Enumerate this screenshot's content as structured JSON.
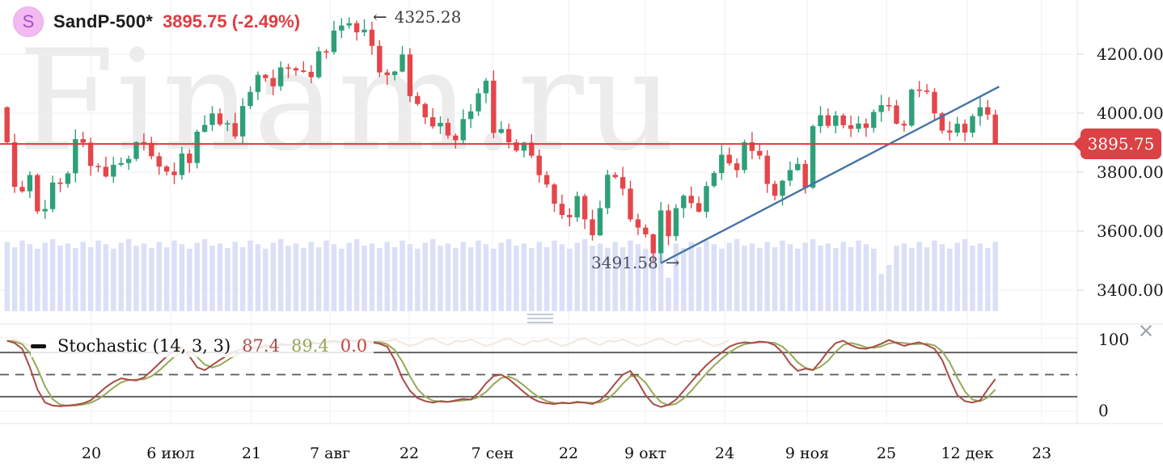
{
  "header": {
    "symbol_badge": "S",
    "title": "SandP-500*",
    "price_change": "3895.75 (-2.49%)"
  },
  "watermark": "Finam.ru",
  "annotations": {
    "high": {
      "arrow": "←",
      "text": "4325.28"
    },
    "low": {
      "text": "3491.58",
      "arrow": "→"
    }
  },
  "price_axis_badge": "3895.75",
  "stoch_axis": {
    "top": "100",
    "bottom": "0"
  },
  "close_icon": "×",
  "indicator": {
    "name": "Stochastic (14, 3, 3)",
    "values": [
      {
        "text": "87.4",
        "color": "#A2524E"
      },
      {
        "text": "89.4",
        "color": "#93A855"
      },
      {
        "text": "0.0",
        "color": "#C2443F"
      }
    ]
  },
  "colors": {
    "candle_up": "#2EA077",
    "candle_down": "#E4464A",
    "volume": "#DBDFF7",
    "price_line": "#E4393D",
    "trend_line": "#4573A8",
    "badge": "#DB4145",
    "stoch_k": "#AA4A46",
    "stoch_d": "#97A957",
    "stoch_pale": "#F2E9E1",
    "grid": "#F0F0F0",
    "ref_line": "#5A5A5A",
    "panel_border": "#E5E5E5"
  },
  "chart_data": {
    "type": "candlestick",
    "title": "SandP-500*",
    "last_price": 3895.75,
    "change_pct": -2.49,
    "high_annotation": 4325.28,
    "low_annotation": 3491.58,
    "price_gridlines": [
      4200,
      4000,
      3800,
      3600,
      3400
    ],
    "price_tick_labels": [
      "4200.00",
      "4000.00",
      "3800.00",
      "3600.00",
      "3400.00"
    ],
    "x_tick_labels": [
      "20",
      "6 июл",
      "21",
      "7 авг",
      "22",
      "7 сен",
      "22",
      "9 окт",
      "24",
      "9 ноя",
      "25",
      "12 дек",
      "23"
    ],
    "y_range_visible": [
      3350,
      4380
    ],
    "first_open": 4020,
    "closes": [
      3901,
      3750,
      3735,
      3790,
      3667,
      3675,
      3765,
      3760,
      3796,
      3912,
      3900,
      3821,
      3818,
      3785,
      3825,
      3831,
      3845,
      3902,
      3899,
      3854,
      3819,
      3802,
      3790,
      3863,
      3831,
      3937,
      3960,
      3999,
      3962,
      3966,
      3921,
      4024,
      4072,
      4130,
      4119,
      4091,
      4155,
      4152,
      4145,
      4140,
      4122,
      4210,
      4207,
      4280,
      4297,
      4305,
      4274,
      4283,
      4228,
      4138,
      4129,
      4141,
      4199,
      4058,
      4031,
      3986,
      3955,
      3967,
      3924,
      3908,
      3980,
      4006,
      4067,
      4110,
      3933,
      3946,
      3901,
      3873,
      3900,
      3856,
      3790,
      3758,
      3693,
      3655,
      3647,
      3719,
      3640,
      3586,
      3678,
      3791,
      3783,
      3744,
      3640,
      3612,
      3589,
      3525,
      3670,
      3583,
      3678,
      3720,
      3695,
      3666,
      3753,
      3797,
      3859,
      3830,
      3807,
      3901,
      3872,
      3856,
      3760,
      3720,
      3771,
      3807,
      3828,
      3748,
      3956,
      3993,
      3957,
      3992,
      3959,
      3947,
      3965,
      3950,
      4004,
      4027,
      4026,
      3964,
      3958,
      4080,
      4077,
      4072,
      3999,
      3941,
      3934,
      3964,
      3934,
      3990,
      4020,
      3995,
      3895.75
    ],
    "special": {
      "high_index": 45,
      "low_index": 86
    },
    "volumes": [
      0.93,
      0.86,
      0.95,
      0.9,
      0.84,
      0.92,
      0.97,
      0.88,
      0.91,
      0.85,
      0.93,
      0.86,
      0.95,
      0.9,
      0.84,
      0.92,
      0.97,
      0.88,
      0.91,
      0.85,
      0.93,
      0.86,
      0.95,
      0.9,
      0.84,
      0.92,
      0.97,
      0.88,
      0.91,
      0.85,
      0.93,
      0.86,
      0.95,
      0.9,
      0.84,
      0.92,
      0.97,
      0.88,
      0.91,
      0.85,
      0.93,
      0.86,
      0.95,
      0.9,
      0.84,
      0.92,
      0.97,
      0.88,
      0.91,
      0.85,
      0.93,
      0.86,
      0.95,
      0.9,
      0.84,
      0.92,
      0.97,
      0.88,
      0.91,
      0.85,
      0.93,
      0.86,
      0.95,
      0.9,
      0.84,
      0.92,
      0.97,
      0.88,
      0.91,
      0.85,
      0.93,
      0.86,
      0.95,
      0.9,
      0.84,
      0.92,
      0.97,
      0.88,
      0.91,
      0.85,
      0.93,
      0.86,
      0.95,
      0.9,
      0.84,
      0.92,
      0.97,
      0.45,
      0.91,
      0.85,
      0.93,
      0.86,
      0.95,
      0.9,
      0.84,
      0.92,
      0.97,
      0.88,
      0.91,
      0.85,
      0.93,
      0.86,
      0.95,
      0.9,
      0.84,
      0.92,
      0.97,
      0.88,
      0.91,
      0.85,
      0.93,
      0.86,
      0.95,
      0.9,
      0.84,
      0.5,
      0.62,
      0.88,
      0.91,
      0.85,
      0.93,
      0.86,
      0.95,
      0.9,
      0.84,
      0.92,
      0.97,
      0.88,
      0.91,
      0.85,
      0.93
    ],
    "trend_line": {
      "from_index": 86,
      "from_price": 3491.58,
      "to_index": 130.5,
      "to_price": 4090
    },
    "price_line": 3895.75,
    "stochastic": {
      "params": "14, 3, 3",
      "levels": [
        80,
        50,
        20
      ],
      "range": [
        0,
        100
      ],
      "k": [
        96,
        93,
        85,
        60,
        30,
        12,
        8,
        7,
        8,
        9,
        11,
        15,
        24,
        33,
        40,
        45,
        43,
        42,
        46,
        55,
        65,
        75,
        83,
        87,
        75,
        60,
        56,
        63,
        70,
        76,
        82,
        85,
        88,
        86,
        90,
        88,
        92,
        90,
        93,
        91,
        94,
        92,
        95,
        96,
        94,
        97,
        95,
        96,
        94,
        92,
        88,
        70,
        45,
        28,
        18,
        14,
        12,
        14,
        13,
        15,
        17,
        16,
        25,
        38,
        48,
        50,
        44,
        35,
        26,
        18,
        13,
        11,
        10,
        12,
        11,
        13,
        12,
        10,
        15,
        25,
        38,
        50,
        55,
        40,
        22,
        10,
        6,
        9,
        16,
        28,
        40,
        52,
        63,
        72,
        80,
        88,
        92,
        94,
        93,
        95,
        94,
        90,
        80,
        65,
        55,
        58,
        56,
        68,
        82,
        93,
        96,
        90,
        86,
        85,
        88,
        92,
        97,
        93,
        89,
        92,
        94,
        90,
        85,
        70,
        45,
        22,
        14,
        12,
        15,
        30,
        44
      ],
      "pale": [
        95,
        98,
        93,
        89,
        92,
        97,
        99,
        94,
        90,
        96,
        95,
        98,
        93,
        89,
        92,
        97,
        99,
        94,
        90,
        96,
        95,
        98,
        93,
        89,
        92,
        97,
        99,
        94,
        90,
        96,
        95,
        98,
        93,
        89,
        92,
        97,
        99,
        94,
        90,
        96,
        95,
        98,
        93,
        89,
        92,
        97,
        99,
        94,
        90,
        96,
        95,
        98,
        93,
        89,
        92,
        97,
        99,
        94,
        90,
        96,
        95,
        98,
        93,
        89,
        92,
        97,
        99,
        94,
        90,
        96,
        95,
        98,
        93,
        89,
        92,
        97,
        99,
        94,
        90,
        96,
        95,
        98,
        93,
        89,
        92,
        97,
        99,
        94,
        90,
        96,
        95,
        98,
        93,
        89,
        92,
        97
      ]
    }
  }
}
